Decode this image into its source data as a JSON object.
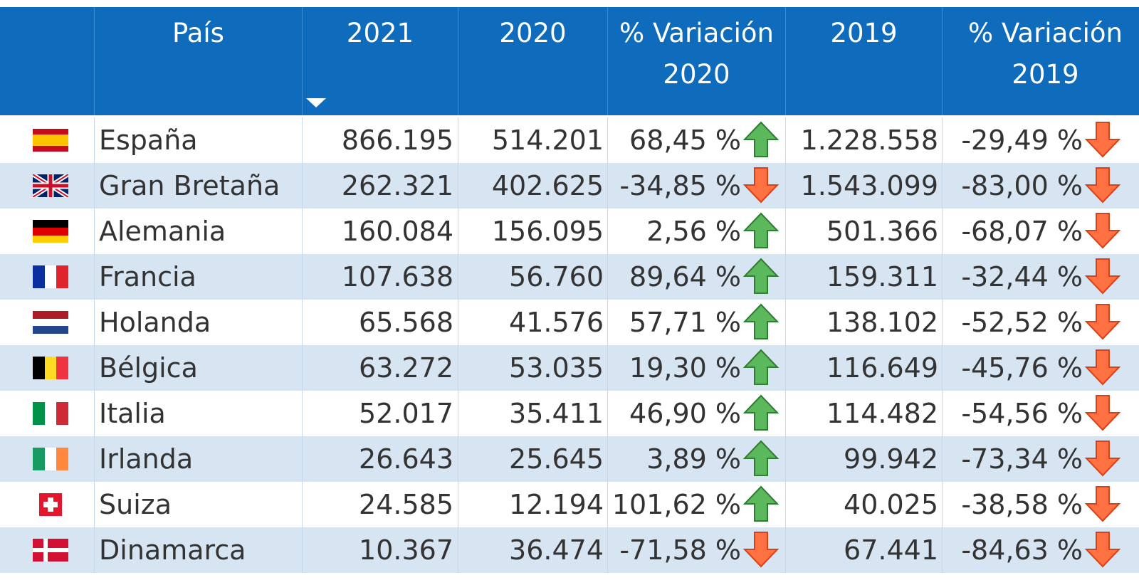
{
  "table": {
    "headers": [
      "País",
      "2021",
      "2020",
      "% Variación 2020",
      "2019",
      "% Variación 2019"
    ],
    "rows": [
      [
        "España",
        "866.195",
        "514.201",
        "68,45 %",
        "1.228.558",
        "-29,49 %"
      ],
      [
        "Gran Bretaña",
        "262.321",
        "402.625",
        "-34,85 %",
        "1.543.099",
        "-83,00 %"
      ],
      [
        "Alemania",
        "160.084",
        "156.095",
        "2,56 %",
        "501.366",
        "-68,07 %"
      ],
      [
        "Francia",
        "107.638",
        "56.760",
        "89,64 %",
        "159.311",
        "-32,44 %"
      ],
      [
        "Holanda",
        "65.568",
        "41.576",
        "57,71 %",
        "138.102",
        "-52,52 %"
      ],
      [
        "Bélgica",
        "63.272",
        "53.035",
        "19,30 %",
        "116.649",
        "-45,76 %"
      ],
      [
        "Italia",
        "52.017",
        "35.411",
        "46,90 %",
        "114.482",
        "-54,56 %"
      ],
      [
        "Irlanda",
        "26.643",
        "25.645",
        "3,89 %",
        "99.942",
        "-73,34 %"
      ],
      [
        "Suiza",
        "24.585",
        "12.194",
        "101,62 %",
        "40.025",
        "-38,58 %"
      ],
      [
        "Dinamarca",
        "10.367",
        "36.474",
        "-71,58 %",
        "67.441",
        "-84,63 %"
      ]
    ]
  }
}
